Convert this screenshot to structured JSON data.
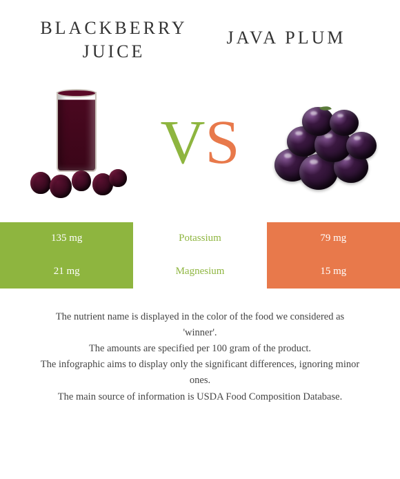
{
  "titles": {
    "left_line1": "Blackberry",
    "left_line2": "juice",
    "right": "Java plum"
  },
  "vs": {
    "v": "V",
    "s": "S",
    "v_color": "#8eb53f",
    "s_color": "#e8794b"
  },
  "colors": {
    "left_bar": "#8eb53f",
    "right_bar": "#e8794b",
    "row_divider": "#ffffff"
  },
  "rows": [
    {
      "left_value": "135 mg",
      "nutrient": "Potassium",
      "right_value": "79 mg",
      "winner_color": "#8eb53f"
    },
    {
      "left_value": "21 mg",
      "nutrient": "Magnesium",
      "right_value": "15 mg",
      "winner_color": "#8eb53f"
    }
  ],
  "footnotes": {
    "l1": "The nutrient name is displayed in the color of the food we considered as",
    "l2": "'winner'.",
    "l3": "The amounts are specified per 100 gram of the product.",
    "l4": "The infographic aims to display only the significant differences, ignoring minor",
    "l5": "ones.",
    "l6": "The main source of information is USDA Food Composition Database."
  }
}
